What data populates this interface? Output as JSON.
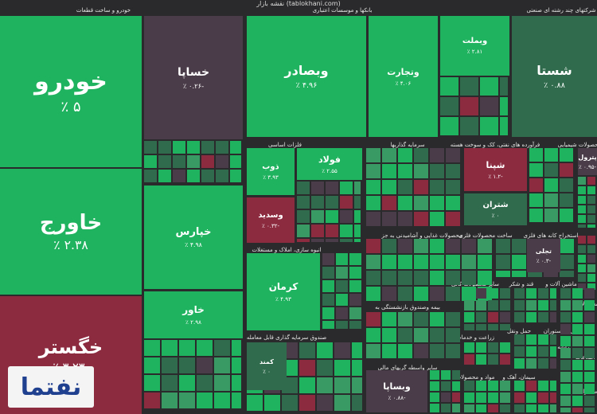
{
  "header": {
    "title": "نقشه بازار (tablokhani.com)"
  },
  "colors": {
    "background": "#2a2a2c",
    "strong_up": "#1fb35f",
    "up": "#3a9a64",
    "flat": "#2f6b4c",
    "neutral": "#4a3c48",
    "down": "#8c2b40"
  },
  "sectors": [
    "خودرو و ساخت قطعات",
    "بانکها و موسسات اعتباری",
    "شرکتهای چند رشته ای صنعتی",
    "فلزات اساسی",
    "سرمایه گذاریها",
    "فرآورده های نفتی، کک و سوخت هسته",
    "محصولات شیمیایی",
    "محصولات غذایی و آشامیدنی به جز",
    "ساخت محصولات فلزی",
    "استخراج کانه های فلزی",
    "انبوه سازی، املاک و مستغلات",
    "صندوق سرمایه گذاری قابل معامله",
    "بیمه وصندوق بازنشستگی به",
    "سایر واسطه گریهای مالی",
    "سایر محصولات کانی",
    "قند و شکر",
    "ماشین آلات و",
    "زراعت و خدمات",
    "حمل ونقل",
    "هتل و رستوران",
    "مواد و محصولات",
    "سیمان، آهک و",
    "رایانه و",
    "محصولات",
    "اطلاعات",
    "مخابرات"
  ],
  "tiles": [
    {
      "name": "خودرو",
      "change": "۵ ٪",
      "status": "strong_up"
    },
    {
      "name": "خاورج",
      "change": "۲.۳۸ ٪",
      "status": "strong_up"
    },
    {
      "name": "خگستر",
      "change": "-۳.۲۳ ٪",
      "status": "down"
    },
    {
      "name": "خساپا",
      "change": "-۰.۲۶ ٪",
      "status": "neutral"
    },
    {
      "name": "خپارس",
      "change": "۴.۹۸ ٪",
      "status": "strong_up"
    },
    {
      "name": "خاور",
      "change": "۲.۹۸ ٪",
      "status": "strong_up"
    },
    {
      "name": "وبصادر",
      "change": "۴.۹۶ ٪",
      "status": "strong_up"
    },
    {
      "name": "وتجارت",
      "change": "۴.۰۶ ٪",
      "status": "strong_up"
    },
    {
      "name": "وبملت",
      "change": "۲.۸۱ ٪",
      "status": "strong_up"
    },
    {
      "name": "شستا",
      "change": "۰.۸۸ ٪",
      "status": "flat"
    },
    {
      "name": "ذوب",
      "change": "۳.۹۳ ٪",
      "status": "strong_up"
    },
    {
      "name": "فولاد",
      "change": "۲.۵۵ ٪",
      "status": "strong_up"
    },
    {
      "name": "وسدید",
      "change": "-۰.۳۲ ٪",
      "status": "down"
    },
    {
      "name": "شپنا",
      "change": "-۱.۲ ٪",
      "status": "down"
    },
    {
      "name": "شتران",
      "change": "۰ ٪",
      "status": "flat"
    },
    {
      "name": "پترول",
      "change": "-۰.۹۵ ٪",
      "status": "neutral"
    },
    {
      "name": "کرمان",
      "change": "۴.۹۳ ٪",
      "status": "strong_up"
    },
    {
      "name": "وبساپا",
      "change": "-۰.۸۸ ٪",
      "status": "neutral"
    },
    {
      "name": "تجلی",
      "change": "-۰.۳ ٪",
      "status": "neutral"
    },
    {
      "name": "کمند",
      "change": "۰ ٪",
      "status": "flat"
    }
  ],
  "logo": {
    "text": "نفتما"
  }
}
